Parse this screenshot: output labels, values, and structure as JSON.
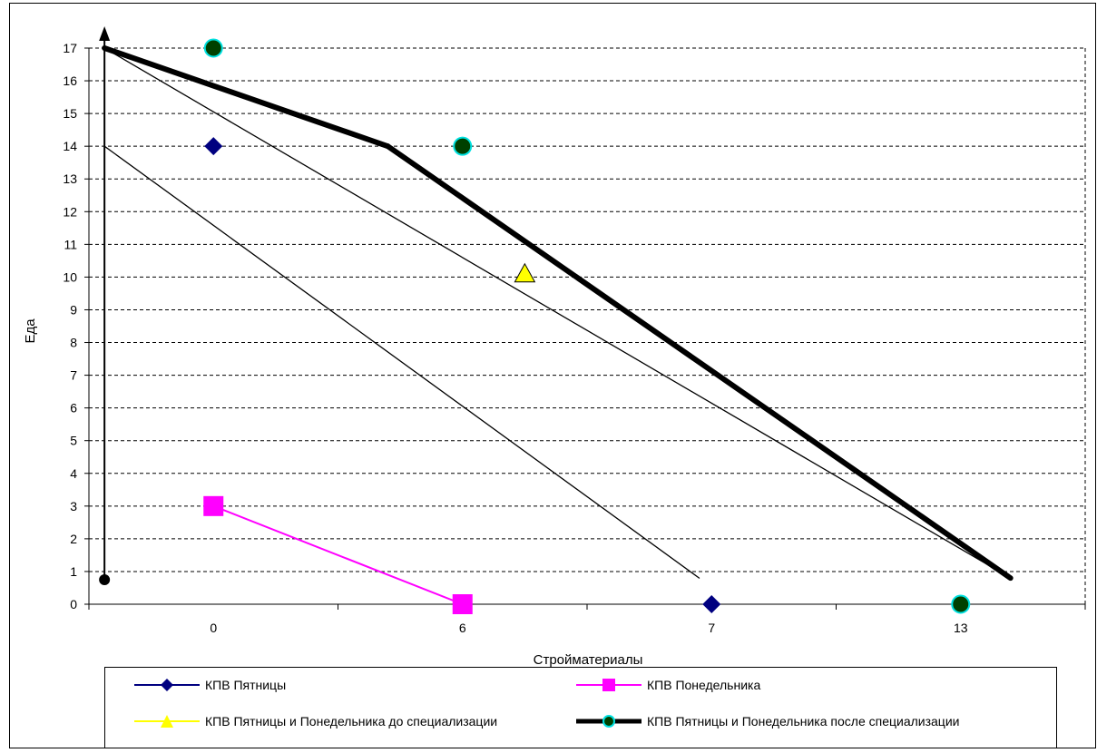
{
  "chart_data": {
    "type": "line",
    "title": "",
    "xlabel": "Стройматериалы",
    "ylabel": "Еда",
    "x_categories": [
      "0",
      "6",
      "7",
      "13"
    ],
    "ylim": [
      0,
      17
    ],
    "yticks": [
      "0",
      "1",
      "2",
      "3",
      "4",
      "5",
      "6",
      "7",
      "8",
      "9",
      "10",
      "11",
      "12",
      "13",
      "14",
      "15",
      "16",
      "17"
    ],
    "grid": "horizontal-dashed",
    "legend_position": "bottom",
    "series": [
      {
        "name": "КПВ Пятницы",
        "color": "#000080",
        "marker": "diamond",
        "points": [
          {
            "x": "0",
            "y": 14
          },
          {
            "x": "7",
            "y": 0
          }
        ]
      },
      {
        "name": "КПВ Понедельника",
        "color": "#ff00ff",
        "marker": "square",
        "points": [
          {
            "x": "0",
            "y": 3
          },
          {
            "x": "6",
            "y": 0
          }
        ]
      },
      {
        "name": "КПВ Пятницы и Понедельника до специализации",
        "color": "#ffff00",
        "marker": "triangle",
        "points": [
          {
            "x": 7.0,
            "y": 10.1
          }
        ]
      },
      {
        "name": "КПВ Пятницы и Понедельника после специализации",
        "color": "#000000",
        "marker": "circle",
        "marker_fill": "#004000",
        "marker_edge": "#00e0e0",
        "points": [
          {
            "x": "0",
            "y": 17
          },
          {
            "x": "6",
            "y": 14
          },
          {
            "x": "13",
            "y": 0
          }
        ]
      }
    ],
    "annotations": [
      {
        "type": "arrow",
        "from": {
          "x": 0.25,
          "y": 0.75
        },
        "to": {
          "x": 0.25,
          "y": 17.5
        }
      },
      {
        "type": "line",
        "from": {
          "x": 0.25,
          "y": 14
        },
        "to": {
          "x": 9.8,
          "y": 0.8
        }
      },
      {
        "type": "line",
        "from": {
          "x": 0.25,
          "y": 17
        },
        "to": {
          "x": 14.8,
          "y": 0.8
        }
      },
      {
        "type": "line",
        "from": {
          "x": 0.25,
          "y": 17
        },
        "to": {
          "x": 4.8,
          "y": 14
        },
        "weight": "bold"
      },
      {
        "type": "line",
        "from": {
          "x": 4.8,
          "y": 14
        },
        "to": {
          "x": 14.8,
          "y": 0.8
        },
        "weight": "bold"
      }
    ]
  }
}
